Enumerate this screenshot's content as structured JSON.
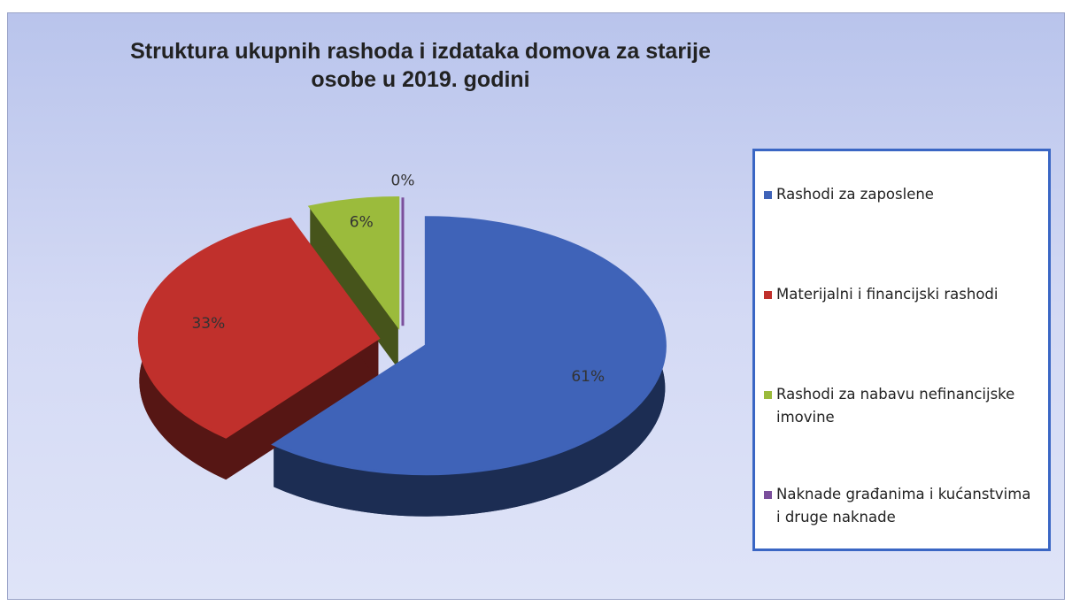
{
  "chart_data": {
    "type": "pie",
    "title": "Struktura ukupnih rashoda i izdataka domova za starije osobe u 2019. godini",
    "categories": [
      "Rashodi za zaposlene",
      "Materijalni i financijski rashodi",
      "Rashodi za nabavu nefinancijske imovine",
      "Naknade građanima i kućanstvima i druge naknade"
    ],
    "values": [
      61,
      33,
      6,
      0
    ],
    "value_labels": [
      "61%",
      "33%",
      "6%",
      "0%"
    ],
    "colors": [
      "#3f63b8",
      "#c0302c",
      "#9bbb3c",
      "#7b4f9c"
    ],
    "legend": "right"
  }
}
